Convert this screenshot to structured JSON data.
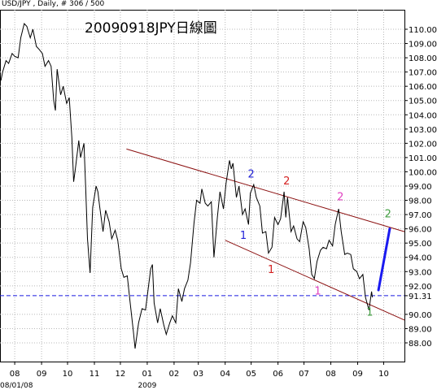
{
  "header": "USD/JPY , Daily, # 306 / 500",
  "chart_data": {
    "type": "line",
    "title": "20090918JPY日線圖",
    "instrument": "USD/JPY",
    "timeframe": "Daily",
    "bar_count": "# 306 / 500",
    "ylim": [
      87,
      111.2
    ],
    "xlim": [
      "2008-07-15",
      "2009-10-25"
    ],
    "y_ticks": [
      "110.00",
      "109.00",
      "108.00",
      "107.00",
      "106.00",
      "105.00",
      "104.00",
      "103.00",
      "102.00",
      "101.00",
      "100.00",
      "99.00",
      "98.00",
      "97.00",
      "96.00",
      "95.00",
      "94.00",
      "93.00",
      "92.00",
      "91.31",
      "90.00",
      "89.00",
      "88.00"
    ],
    "y_tick_values": [
      110,
      109,
      108,
      107,
      106,
      105,
      104,
      103,
      102,
      101,
      100,
      99,
      98,
      97,
      96,
      95,
      94,
      93,
      92,
      91.31,
      90,
      89,
      88
    ],
    "x_ticks": [
      {
        "label": "08",
        "date": "2008-08-01"
      },
      {
        "label": "09",
        "date": "2008-09-01"
      },
      {
        "label": "10",
        "date": "2008-10-01"
      },
      {
        "label": "11",
        "date": "2008-11-01"
      },
      {
        "label": "12",
        "date": "2008-12-01"
      },
      {
        "label": "01",
        "date": "2009-01-01"
      },
      {
        "label": "02",
        "date": "2009-02-01"
      },
      {
        "label": "03",
        "date": "2009-03-01"
      },
      {
        "label": "04",
        "date": "2009-04-01"
      },
      {
        "label": "05",
        "date": "2009-05-01"
      },
      {
        "label": "06",
        "date": "2009-06-01"
      },
      {
        "label": "07",
        "date": "2009-07-01"
      },
      {
        "label": "08",
        "date": "2009-08-01"
      },
      {
        "label": "09",
        "date": "2009-09-01"
      },
      {
        "label": "10",
        "date": "2009-10-01"
      }
    ],
    "x_bottom_labels": [
      {
        "label": "08/01/08",
        "date": "2008-08-01"
      },
      {
        "label": "2009",
        "date": "2009-01-01"
      }
    ],
    "price": [
      [
        "2008-07-16",
        106.4
      ],
      [
        "2008-07-18",
        107.0
      ],
      [
        "2008-07-22",
        107.8
      ],
      [
        "2008-07-25",
        107.6
      ],
      [
        "2008-07-29",
        108.3
      ],
      [
        "2008-08-01",
        108.1
      ],
      [
        "2008-08-05",
        108.0
      ],
      [
        "2008-08-08",
        109.4
      ],
      [
        "2008-08-12",
        110.4
      ],
      [
        "2008-08-15",
        110.2
      ],
      [
        "2008-08-19",
        109.4
      ],
      [
        "2008-08-22",
        110.0
      ],
      [
        "2008-08-26",
        108.8
      ],
      [
        "2008-08-29",
        108.6
      ],
      [
        "2008-09-02",
        108.3
      ],
      [
        "2008-09-05",
        107.4
      ],
      [
        "2008-09-09",
        107.8
      ],
      [
        "2008-09-12",
        107.4
      ],
      [
        "2008-09-15",
        105.0
      ],
      [
        "2008-09-17",
        104.3
      ],
      [
        "2008-09-19",
        107.2
      ],
      [
        "2008-09-23",
        105.4
      ],
      [
        "2008-09-26",
        106.0
      ],
      [
        "2008-09-30",
        104.8
      ],
      [
        "2008-10-03",
        105.2
      ],
      [
        "2008-10-06",
        102.4
      ],
      [
        "2008-10-08",
        99.3
      ],
      [
        "2008-10-10",
        100.2
      ],
      [
        "2008-10-14",
        102.2
      ],
      [
        "2008-10-16",
        101.0
      ],
      [
        "2008-10-20",
        102.0
      ],
      [
        "2008-10-22",
        98.7
      ],
      [
        "2008-10-24",
        95.3
      ],
      [
        "2008-10-27",
        92.9
      ],
      [
        "2008-10-30",
        97.5
      ],
      [
        "2008-11-03",
        99.0
      ],
      [
        "2008-11-05",
        98.6
      ],
      [
        "2008-11-07",
        97.6
      ],
      [
        "2008-11-11",
        95.8
      ],
      [
        "2008-11-14",
        97.3
      ],
      [
        "2008-11-18",
        96.5
      ],
      [
        "2008-11-21",
        95.3
      ],
      [
        "2008-11-25",
        95.9
      ],
      [
        "2008-11-28",
        95.2
      ],
      [
        "2008-12-02",
        93.2
      ],
      [
        "2008-12-05",
        92.6
      ],
      [
        "2008-12-09",
        92.7
      ],
      [
        "2008-12-12",
        91.0
      ],
      [
        "2008-12-16",
        88.8
      ],
      [
        "2008-12-18",
        87.6
      ],
      [
        "2008-12-22",
        89.4
      ],
      [
        "2008-12-26",
        90.4
      ],
      [
        "2008-12-30",
        90.3
      ],
      [
        "2009-01-05",
        93.2
      ],
      [
        "2009-01-07",
        93.5
      ],
      [
        "2009-01-09",
        90.8
      ],
      [
        "2009-01-13",
        89.4
      ],
      [
        "2009-01-16",
        90.4
      ],
      [
        "2009-01-20",
        89.3
      ],
      [
        "2009-01-23",
        88.6
      ],
      [
        "2009-01-27",
        89.4
      ],
      [
        "2009-01-30",
        89.9
      ],
      [
        "2009-02-03",
        89.4
      ],
      [
        "2009-02-06",
        91.8
      ],
      [
        "2009-02-10",
        90.9
      ],
      [
        "2009-02-13",
        91.8
      ],
      [
        "2009-02-17",
        92.4
      ],
      [
        "2009-02-20",
        93.6
      ],
      [
        "2009-02-24",
        96.4
      ],
      [
        "2009-02-27",
        98.0
      ],
      [
        "2009-03-03",
        97.8
      ],
      [
        "2009-03-05",
        98.8
      ],
      [
        "2009-03-09",
        97.8
      ],
      [
        "2009-03-12",
        97.6
      ],
      [
        "2009-03-16",
        97.9
      ],
      [
        "2009-03-19",
        94.0
      ],
      [
        "2009-03-23",
        96.8
      ],
      [
        "2009-03-26",
        98.6
      ],
      [
        "2009-03-30",
        97.4
      ],
      [
        "2009-04-02",
        99.2
      ],
      [
        "2009-04-06",
        100.8
      ],
      [
        "2009-04-08",
        100.2
      ],
      [
        "2009-04-10",
        100.6
      ],
      [
        "2009-04-14",
        98.2
      ],
      [
        "2009-04-17",
        99.0
      ],
      [
        "2009-04-21",
        97.0
      ],
      [
        "2009-04-24",
        97.4
      ],
      [
        "2009-04-28",
        96.3
      ],
      [
        "2009-04-30",
        98.5
      ],
      [
        "2009-05-04",
        99.1
      ],
      [
        "2009-05-07",
        98.2
      ],
      [
        "2009-05-11",
        97.6
      ],
      [
        "2009-05-14",
        95.7
      ],
      [
        "2009-05-18",
        95.8
      ],
      [
        "2009-05-21",
        94.3
      ],
      [
        "2009-05-25",
        94.7
      ],
      [
        "2009-05-28",
        96.8
      ],
      [
        "2009-06-01",
        96.3
      ],
      [
        "2009-06-04",
        96.7
      ],
      [
        "2009-06-08",
        98.6
      ],
      [
        "2009-06-10",
        96.8
      ],
      [
        "2009-06-12",
        98.2
      ],
      [
        "2009-06-16",
        95.8
      ],
      [
        "2009-06-19",
        96.2
      ],
      [
        "2009-06-23",
        95.3
      ],
      [
        "2009-06-26",
        95.1
      ],
      [
        "2009-06-30",
        96.5
      ],
      [
        "2009-07-03",
        96.1
      ],
      [
        "2009-07-07",
        94.6
      ],
      [
        "2009-07-10",
        92.8
      ],
      [
        "2009-07-13",
        92.5
      ],
      [
        "2009-07-16",
        93.7
      ],
      [
        "2009-07-20",
        94.5
      ],
      [
        "2009-07-23",
        94.7
      ],
      [
        "2009-07-27",
        94.6
      ],
      [
        "2009-07-30",
        95.2
      ],
      [
        "2009-08-03",
        94.8
      ],
      [
        "2009-08-06",
        96.3
      ],
      [
        "2009-08-10",
        97.4
      ],
      [
        "2009-08-13",
        95.8
      ],
      [
        "2009-08-17",
        94.2
      ],
      [
        "2009-08-20",
        94.3
      ],
      [
        "2009-08-24",
        94.2
      ],
      [
        "2009-08-27",
        93.2
      ],
      [
        "2009-08-31",
        93.0
      ],
      [
        "2009-09-03",
        92.5
      ],
      [
        "2009-09-07",
        92.8
      ],
      [
        "2009-09-10",
        91.2
      ],
      [
        "2009-09-14",
        90.3
      ],
      [
        "2009-09-17",
        91.6
      ],
      [
        "2009-09-18",
        91.2
      ]
    ],
    "current_price_line": 91.31,
    "channel_lines": [
      {
        "from": [
          "2008-12-08",
          101.6
        ],
        "to": [
          "2009-10-25",
          95.8
        ]
      },
      {
        "from": [
          "2009-04-01",
          95.2
        ],
        "to": [
          "2009-10-25",
          89.6
        ]
      }
    ],
    "projection_line": {
      "from": [
        "2009-09-25",
        91.7
      ],
      "to": [
        "2009-10-08",
        96.0
      ]
    },
    "annotations": [
      {
        "text": "2",
        "date": "2009-05-01",
        "y": 99.6,
        "color": "#2323d8"
      },
      {
        "text": "1",
        "date": "2009-04-22",
        "y": 95.3,
        "color": "#2323d8"
      },
      {
        "text": "2",
        "date": "2009-06-11",
        "y": 99.1,
        "color": "#d42222"
      },
      {
        "text": "1",
        "date": "2009-05-24",
        "y": 92.9,
        "color": "#d42222"
      },
      {
        "text": "2",
        "date": "2009-08-12",
        "y": 98.0,
        "color": "#e040c0"
      },
      {
        "text": "1",
        "date": "2009-07-17",
        "y": 91.4,
        "color": "#e040c0"
      },
      {
        "text": "2",
        "date": "2009-10-06",
        "y": 96.8,
        "color": "#44a044"
      },
      {
        "text": "1",
        "date": "2009-09-15",
        "y": 89.9,
        "color": "#44a044"
      }
    ],
    "colors": {
      "price": "#000000",
      "channel": "#8b1010",
      "projection": "#1a1af0",
      "current_price": "#1a1ae0",
      "grid": "#b8b8b8"
    },
    "grid": true
  }
}
